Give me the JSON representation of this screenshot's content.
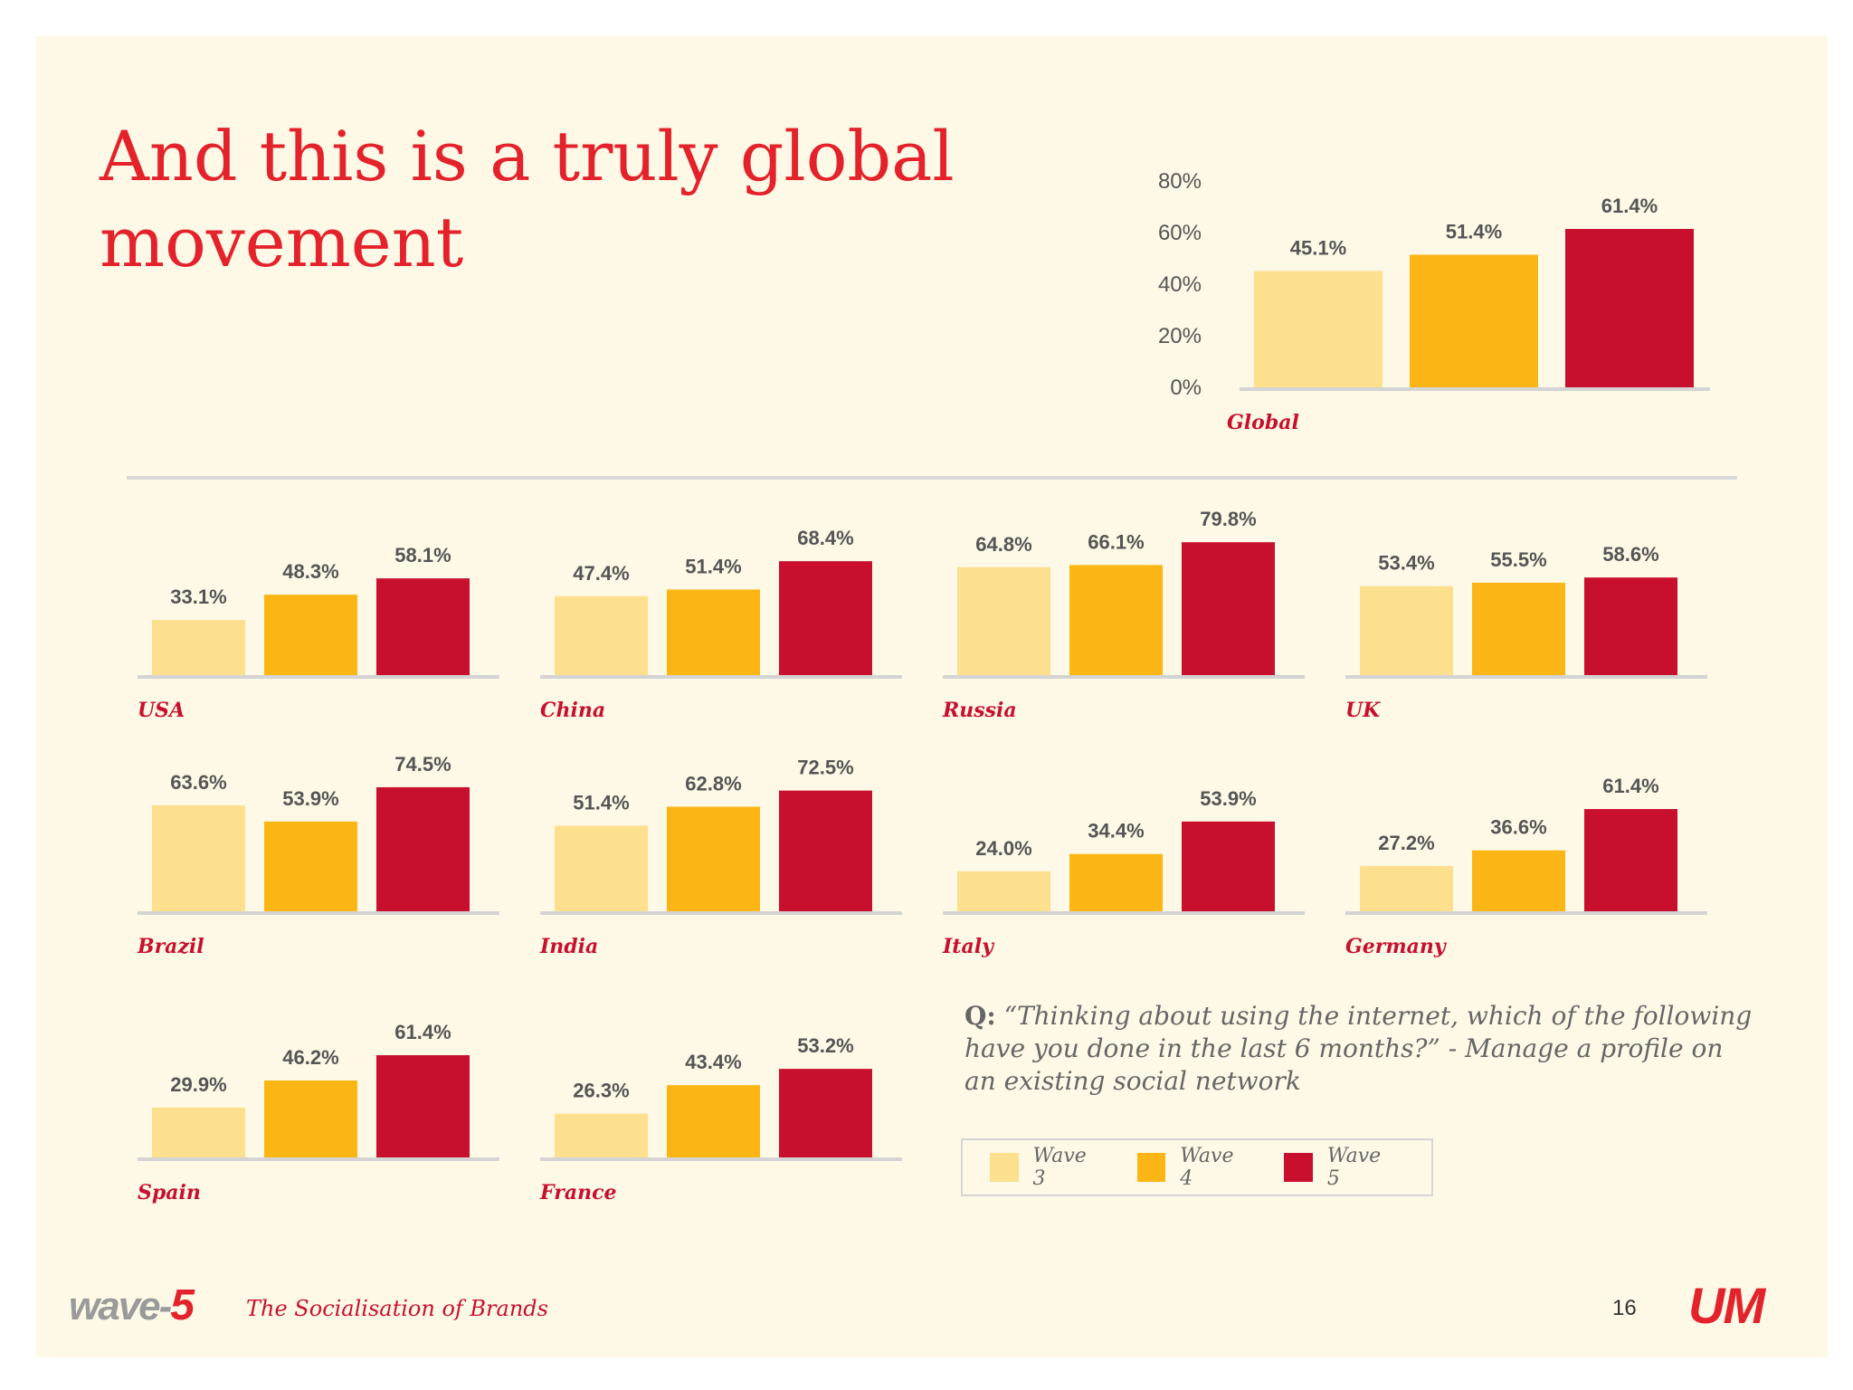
{
  "title": "And this is a truly global movement",
  "legend": [
    {
      "label": "Wave 3",
      "color": "#fde08e"
    },
    {
      "label": "Wave 4",
      "color": "#fbb616"
    },
    {
      "label": "Wave 5",
      "color": "#c8102e"
    }
  ],
  "question": {
    "prefix": "Q:",
    "text": "“Thinking about using the internet, which of the following have you done in the last 6 months?” - Manage a profile on an existing social network"
  },
  "footer": {
    "logo_main": "wave-",
    "logo_number": "5",
    "text": "The Socialisation of Brands",
    "page_number": "16",
    "brand_logo": "UM"
  },
  "chart_data": [
    {
      "type": "bar",
      "title": "Global",
      "categories": [
        "Wave 3",
        "Wave 4",
        "Wave 5"
      ],
      "values": [
        45.1,
        51.4,
        61.4
      ],
      "labels": [
        "45.1%",
        "51.4%",
        "61.4%"
      ],
      "ylim": [
        0,
        80
      ],
      "yticks": [
        "0%",
        "20%",
        "40%",
        "60%",
        "80%"
      ]
    },
    {
      "type": "bar",
      "title": "USA",
      "categories": [
        "Wave 3",
        "Wave 4",
        "Wave 5"
      ],
      "values": [
        33.1,
        48.3,
        58.1
      ],
      "labels": [
        "33.1%",
        "48.3%",
        "58.1%"
      ],
      "ylim": [
        0,
        80
      ]
    },
    {
      "type": "bar",
      "title": "China",
      "categories": [
        "Wave 3",
        "Wave 4",
        "Wave 5"
      ],
      "values": [
        47.4,
        51.4,
        68.4
      ],
      "labels": [
        "47.4%",
        "51.4%",
        "68.4%"
      ],
      "ylim": [
        0,
        80
      ]
    },
    {
      "type": "bar",
      "title": "Russia",
      "categories": [
        "Wave 3",
        "Wave 4",
        "Wave 5"
      ],
      "values": [
        64.8,
        66.1,
        79.8
      ],
      "labels": [
        "64.8%",
        "66.1%",
        "79.8%"
      ],
      "ylim": [
        0,
        80
      ]
    },
    {
      "type": "bar",
      "title": "UK",
      "categories": [
        "Wave 3",
        "Wave 4",
        "Wave 5"
      ],
      "values": [
        53.4,
        55.5,
        58.6
      ],
      "labels": [
        "53.4%",
        "55.5%",
        "58.6%"
      ],
      "ylim": [
        0,
        80
      ]
    },
    {
      "type": "bar",
      "title": "Brazil",
      "categories": [
        "Wave 3",
        "Wave 4",
        "Wave 5"
      ],
      "values": [
        63.6,
        53.9,
        74.5
      ],
      "labels": [
        "63.6%",
        "53.9%",
        "74.5%"
      ],
      "ylim": [
        0,
        80
      ]
    },
    {
      "type": "bar",
      "title": "India",
      "categories": [
        "Wave 3",
        "Wave 4",
        "Wave 5"
      ],
      "values": [
        51.4,
        62.8,
        72.5
      ],
      "labels": [
        "51.4%",
        "62.8%",
        "72.5%"
      ],
      "ylim": [
        0,
        80
      ]
    },
    {
      "type": "bar",
      "title": "Italy",
      "categories": [
        "Wave 3",
        "Wave 4",
        "Wave 5"
      ],
      "values": [
        24.0,
        34.4,
        53.9
      ],
      "labels": [
        "24.0%",
        "34.4%",
        "53.9%"
      ],
      "ylim": [
        0,
        80
      ]
    },
    {
      "type": "bar",
      "title": "Germany",
      "categories": [
        "Wave 3",
        "Wave 4",
        "Wave 5"
      ],
      "values": [
        27.2,
        36.6,
        61.4
      ],
      "labels": [
        "27.2%",
        "36.6%",
        "61.4%"
      ],
      "ylim": [
        0,
        80
      ]
    },
    {
      "type": "bar",
      "title": "Spain",
      "categories": [
        "Wave 3",
        "Wave 4",
        "Wave 5"
      ],
      "values": [
        29.9,
        46.2,
        61.4
      ],
      "labels": [
        "29.9%",
        "46.2%",
        "61.4%"
      ],
      "ylim": [
        0,
        80
      ]
    },
    {
      "type": "bar",
      "title": "France",
      "categories": [
        "Wave 3",
        "Wave 4",
        "Wave 5"
      ],
      "values": [
        26.3,
        43.4,
        53.2
      ],
      "labels": [
        "26.3%",
        "43.4%",
        "53.2%"
      ],
      "ylim": [
        0,
        80
      ]
    }
  ]
}
